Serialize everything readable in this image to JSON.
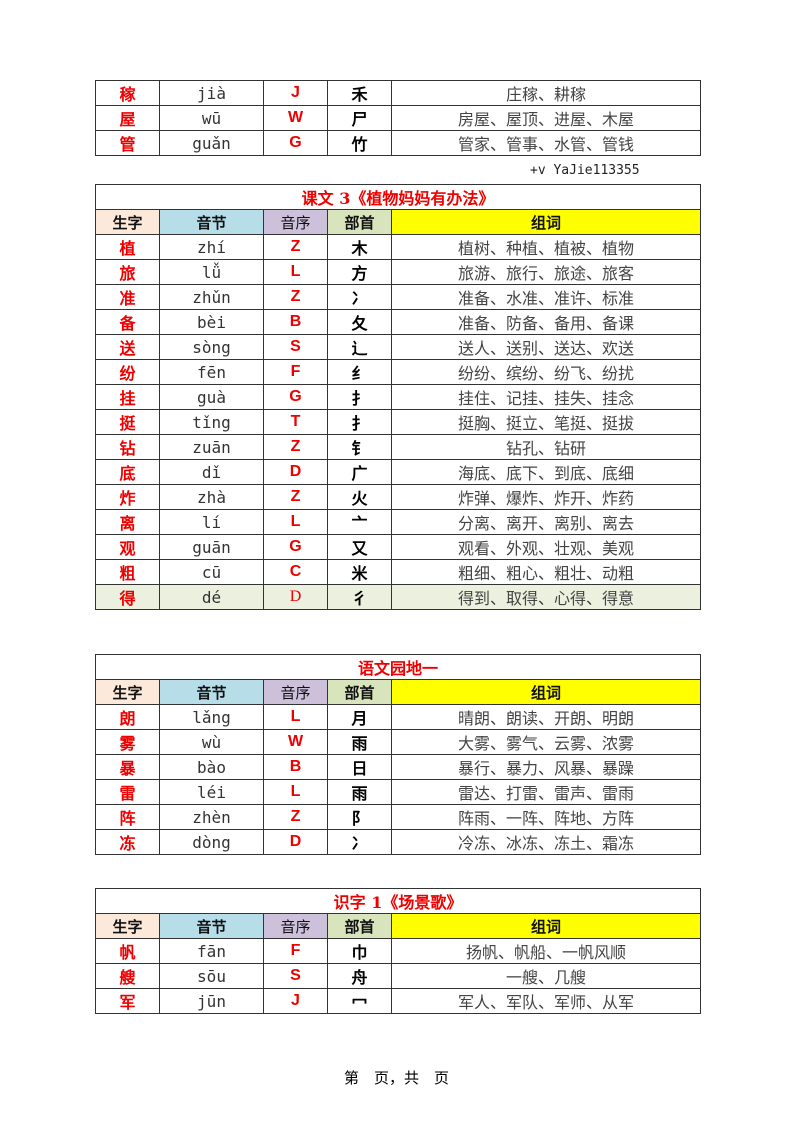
{
  "header_labels": [
    "生字",
    "音节",
    "音序",
    "部首",
    "组词"
  ],
  "header_colors": [
    "#fde9d9",
    "#b7dee8",
    "#ccc0da",
    "#d8e4bc",
    "#ffff00"
  ],
  "accent_color": "#e00000",
  "watermark": "+v  YaJie113355",
  "tables": [
    {
      "title": "",
      "rows": [
        [
          "稼",
          "jià",
          "J",
          "禾",
          "庄稼、耕稼"
        ],
        [
          "屋",
          "wū",
          "W",
          "尸",
          "房屋、屋顶、进屋、木屋"
        ],
        [
          "管",
          "guǎn",
          "G",
          "竹",
          "管家、管事、水管、管钱"
        ]
      ]
    },
    {
      "title": "课文 3《植物妈妈有办法》",
      "rows": [
        [
          "植",
          "zhí",
          "Z",
          "木",
          "植树、种植、植被、植物"
        ],
        [
          "旅",
          "lǚ",
          "L",
          "方",
          "旅游、旅行、旅途、旅客"
        ],
        [
          "准",
          "zhǔn",
          "Z",
          "冫",
          "准备、水准、准许、标准"
        ],
        [
          "备",
          "bèi",
          "B",
          "夂",
          "准备、防备、备用、备课"
        ],
        [
          "送",
          "sòng",
          "S",
          "辶",
          "送人、送别、送达、欢送"
        ],
        [
          "纷",
          "fēn",
          "F",
          "纟",
          "纷纷、缤纷、纷飞、纷扰"
        ],
        [
          "挂",
          "guà",
          "G",
          "扌",
          "挂住、记挂、挂失、挂念"
        ],
        [
          "挺",
          "tǐng",
          "T",
          "扌",
          "挺胸、挺立、笔挺、挺拔"
        ],
        [
          "钻",
          "zuān",
          "Z",
          "钅",
          "钻孔、钻研"
        ],
        [
          "底",
          "dǐ",
          "D",
          "广",
          "海底、底下、到底、底细"
        ],
        [
          "炸",
          "zhà",
          "Z",
          "火",
          "炸弹、爆炸、炸开、炸药"
        ],
        [
          "离",
          "lí",
          "L",
          "亠",
          "分离、离开、离别、离去"
        ],
        [
          "观",
          "guān",
          "G",
          "又",
          "观看、外观、壮观、美观"
        ],
        [
          "粗",
          "cū",
          "C",
          "米",
          "粗细、粗心、粗壮、动粗"
        ],
        [
          "得",
          "dé",
          "D",
          "彳",
          "得到、取得、心得、得意"
        ]
      ]
    },
    {
      "title": "语文园地一",
      "rows": [
        [
          "朗",
          "lǎng",
          "L",
          "月",
          "晴朗、朗读、开朗、明朗"
        ],
        [
          "雾",
          "wù",
          "W",
          "雨",
          "大雾、雾气、云雾、浓雾"
        ],
        [
          "暴",
          "bào",
          "B",
          "日",
          "暴行、暴力、风暴、暴躁"
        ],
        [
          "雷",
          "léi",
          "L",
          "雨",
          "雷达、打雷、雷声、雷雨"
        ],
        [
          "阵",
          "zhèn",
          "Z",
          "阝",
          "阵雨、一阵、阵地、方阵"
        ],
        [
          "冻",
          "dòng",
          "D",
          "冫",
          "冷冻、冰冻、冻土、霜冻"
        ]
      ]
    },
    {
      "title": "识字 1《场景歌》",
      "rows": [
        [
          "帆",
          "fān",
          "F",
          "巾",
          "扬帆、帆船、一帆风顺"
        ],
        [
          "艘",
          "sōu",
          "S",
          "舟",
          "一艘、几艘"
        ],
        [
          "军",
          "jūn",
          "J",
          "冖",
          "军人、军队、军师、从军"
        ]
      ]
    }
  ],
  "footer": "第　页，共　页"
}
